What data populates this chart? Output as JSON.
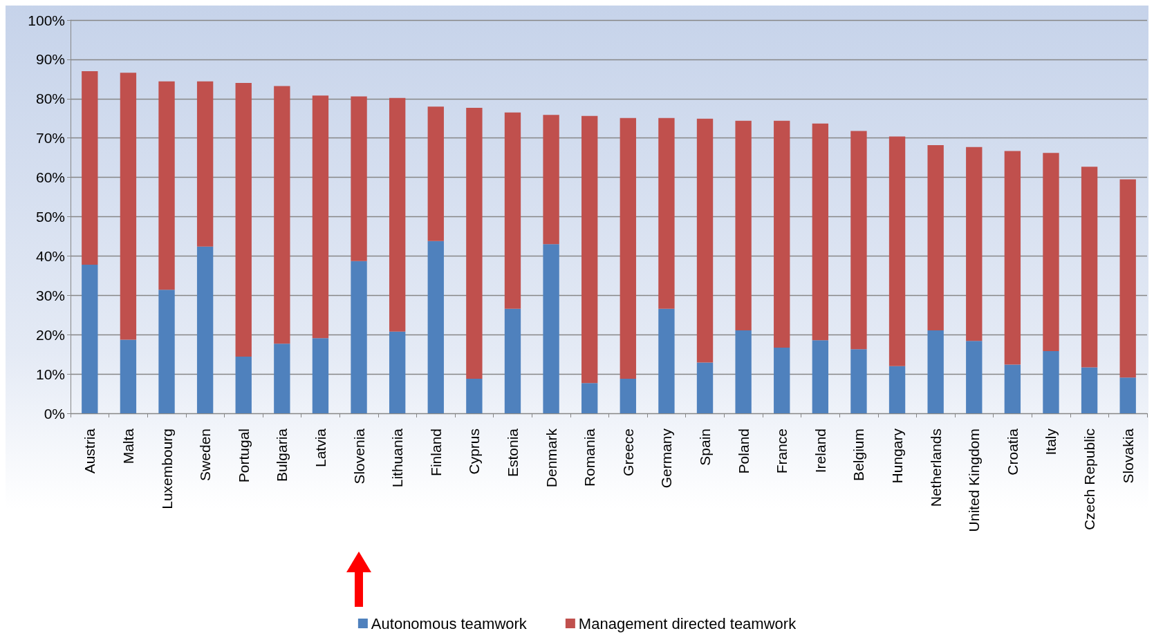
{
  "chart_data": {
    "type": "bar",
    "stacked": true,
    "categories": [
      "Austria",
      "Malta",
      "Luxembourg",
      "Sweden",
      "Portugal",
      "Bulgaria",
      "Latvia",
      "Slovenia",
      "Lithuania",
      "Finland",
      "Cyprus",
      "Estonia",
      "Denmark",
      "Romania",
      "Greece",
      "Germany",
      "Spain",
      "Poland",
      "France",
      "Ireland",
      "Belgium",
      "Hungary",
      "Netherlands",
      "United Kingdom",
      "Croatia",
      "Italy",
      "Czech Republic",
      "Slovakia"
    ],
    "series": [
      {
        "name": "Autonomous teamwork",
        "color": "#4f81bd",
        "values": [
          37.8,
          18.7,
          31.4,
          42.4,
          14.4,
          17.7,
          19.1,
          38.7,
          20.8,
          43.8,
          8.8,
          26.6,
          43.0,
          7.7,
          8.8,
          26.6,
          12.9,
          21.1,
          16.7,
          18.6,
          16.3,
          12.0,
          21.1,
          18.4,
          12.4,
          15.8,
          11.7,
          9.1
        ]
      },
      {
        "name": "Management directed teamwork",
        "color": "#c0504d",
        "values": [
          49.2,
          67.9,
          53.0,
          42.0,
          69.6,
          65.5,
          61.7,
          41.9,
          59.4,
          34.2,
          68.9,
          49.9,
          32.9,
          67.9,
          66.3,
          48.5,
          62.0,
          53.3,
          57.7,
          55.1,
          55.5,
          58.4,
          47.1,
          49.3,
          54.3,
          50.4,
          51.0,
          50.4
        ]
      }
    ],
    "ylim": [
      0,
      100
    ],
    "yticks": [
      {
        "value": 0,
        "label": "0%"
      },
      {
        "value": 10,
        "label": "10%"
      },
      {
        "value": 20,
        "label": "20%"
      },
      {
        "value": 30,
        "label": "30%"
      },
      {
        "value": 40,
        "label": "40%"
      },
      {
        "value": 50,
        "label": "50%"
      },
      {
        "value": 60,
        "label": "60%"
      },
      {
        "value": 70,
        "label": "70%"
      },
      {
        "value": 80,
        "label": "80%"
      },
      {
        "value": 90,
        "label": "90%"
      },
      {
        "value": 100,
        "label": "100%"
      }
    ],
    "grid": "y",
    "legend": "bottom"
  }
}
